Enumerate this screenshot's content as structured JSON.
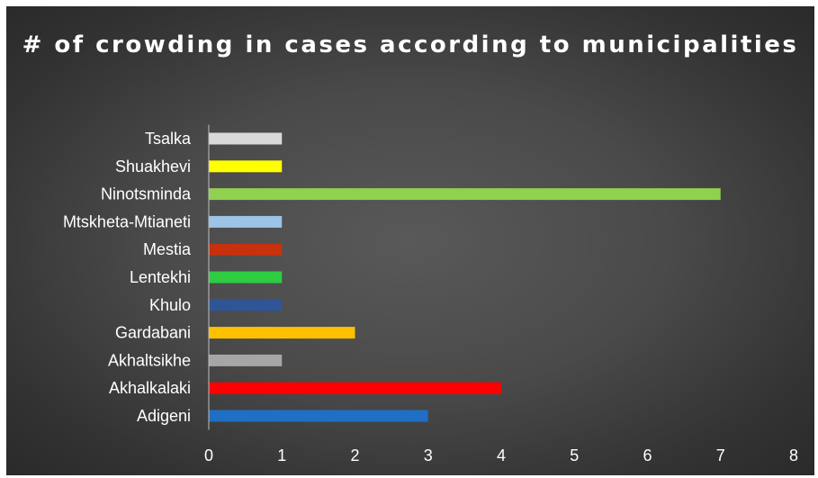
{
  "chart_data": {
    "type": "bar",
    "orientation": "horizontal",
    "title": "# of crowding in cases according to municipalities",
    "categories": [
      "Adigeni",
      "Akhalkalaki",
      "Akhaltsikhe",
      "Gardabani",
      "Khulo",
      "Lentekhi",
      "Mestia",
      "Mtskheta-Mtianeti",
      "Ninotsminda",
      "Shuakhevi",
      "Tsalka"
    ],
    "values": [
      3,
      4,
      1,
      2,
      1,
      1,
      1,
      1,
      7,
      1,
      1
    ],
    "colors": [
      "#1f6fc5",
      "#ff0000",
      "#a6a6a6",
      "#ffc000",
      "#2f5597",
      "#2ecc40",
      "#c9300c",
      "#9dc3e6",
      "#92d050",
      "#ffff00",
      "#d9d9d9"
    ],
    "xlim": [
      0,
      8
    ],
    "xticks": [
      "0",
      "1",
      "2",
      "3",
      "4",
      "5",
      "6",
      "7",
      "8"
    ],
    "xlabel": "",
    "ylabel": "",
    "grid": false,
    "legend": "none"
  }
}
